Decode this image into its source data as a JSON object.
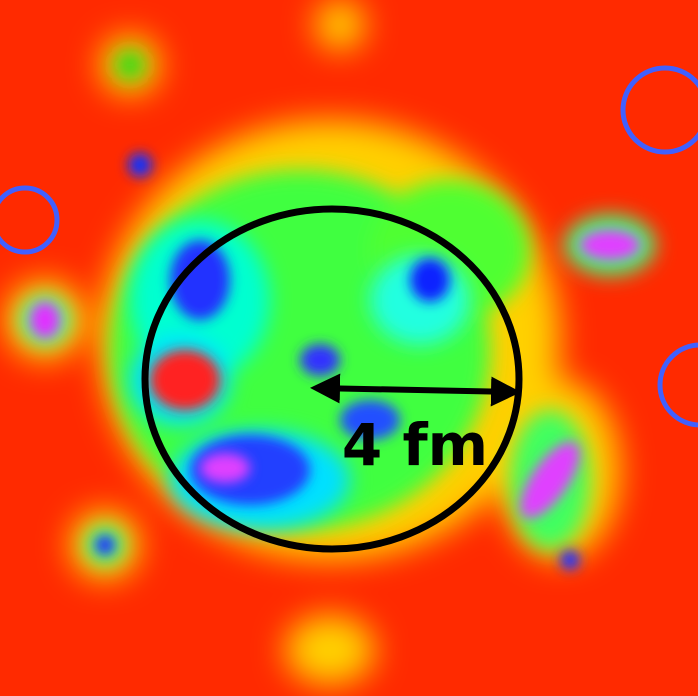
{
  "annotation": {
    "label": "4 fm"
  }
}
